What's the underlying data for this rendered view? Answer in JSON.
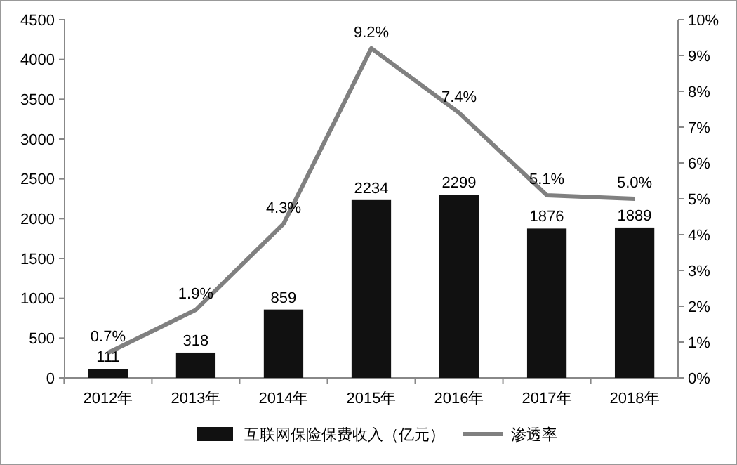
{
  "chart_data": {
    "type": "bar",
    "categories": [
      "2012年",
      "2013年",
      "2014年",
      "2015年",
      "2016年",
      "2017年",
      "2018年"
    ],
    "series": [
      {
        "name": "互联网保险保费收入（亿元）",
        "color": "#111111",
        "values": [
          111,
          318,
          859,
          2234,
          2299,
          1876,
          1889
        ],
        "value_labels": [
          "111",
          "318",
          "859",
          "2234",
          "2299",
          "1876",
          "1889"
        ]
      },
      {
        "name": "渗透率",
        "type": "line",
        "axis": "y2",
        "color": "#808080",
        "values": [
          0.7,
          1.9,
          4.3,
          9.2,
          7.4,
          5.1,
          5.0
        ],
        "value_labels": [
          "0.7%",
          "1.9%",
          "4.3%",
          "9.2%",
          "7.4%",
          "5.1%",
          "5.0%"
        ]
      }
    ],
    "ylim": [
      0,
      4500
    ],
    "yticks": [
      0,
      500,
      1000,
      1500,
      2000,
      2500,
      3000,
      3500,
      4000,
      4500
    ],
    "y2lim": [
      0,
      10
    ],
    "y2ticks": [
      {
        "value": 0,
        "label": "0%"
      },
      {
        "value": 1,
        "label": "1%"
      },
      {
        "value": 2,
        "label": "2%"
      },
      {
        "value": 3,
        "label": "3%"
      },
      {
        "value": 4,
        "label": "4%"
      },
      {
        "value": 5,
        "label": "5%"
      },
      {
        "value": 6,
        "label": "6%"
      },
      {
        "value": 7,
        "label": "7%"
      },
      {
        "value": 8,
        "label": "8%"
      },
      {
        "value": 9,
        "label": "9%"
      },
      {
        "value": 10,
        "label": "10%"
      }
    ],
    "legend": "bottom",
    "grid": false,
    "marker": "none",
    "line_style": "solid"
  }
}
